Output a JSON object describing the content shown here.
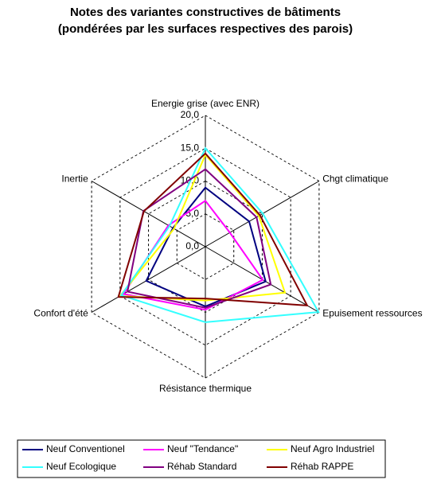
{
  "chart_data": {
    "type": "radar",
    "title": "Notes des variantes constructives de bâtiments",
    "subtitle": "(pondérées par les surfaces respectives des parois)",
    "categories": [
      "Energie grise (avec ENR)",
      "Chgt climatique",
      "Epuisement ressources",
      "Résistance thermique",
      "Confort d'été",
      "Inertie"
    ],
    "ylim": [
      0,
      20
    ],
    "yticks": [
      {
        "value": 0,
        "label": "0,0"
      },
      {
        "value": 5,
        "label": "5,0"
      },
      {
        "value": 10,
        "label": "10,0"
      },
      {
        "value": 15,
        "label": "15,0"
      },
      {
        "value": 20,
        "label": "20,0"
      }
    ],
    "grid": true,
    "legend": "bottom",
    "series": [
      {
        "name": "Neuf Conventionel",
        "color": "#000080",
        "values": [
          9.0,
          7.7,
          10.6,
          9.1,
          10.4,
          5.7
        ]
      },
      {
        "name": "Neuf \"Tendance\"",
        "color": "#ff00ff",
        "values": [
          7.0,
          4.3,
          10.1,
          9.6,
          14.4,
          6.5
        ]
      },
      {
        "name": "Neuf Agro Industriel",
        "color": "#ffff00",
        "values": [
          14.0,
          9.4,
          14.0,
          8.2,
          15.0,
          5.5
        ]
      },
      {
        "name": "Neuf Ecologique",
        "color": "#33ffff",
        "values": [
          15.0,
          10.1,
          19.9,
          11.5,
          14.8,
          6.3
        ]
      },
      {
        "name": "Réhab Standard",
        "color": "#800080",
        "values": [
          11.8,
          9.0,
          11.5,
          9.3,
          13.7,
          10.9
        ]
      },
      {
        "name": "Réhab RAPPE",
        "color": "#800000",
        "values": [
          14.2,
          9.6,
          17.9,
          7.9,
          15.3,
          10.8
        ]
      }
    ]
  }
}
